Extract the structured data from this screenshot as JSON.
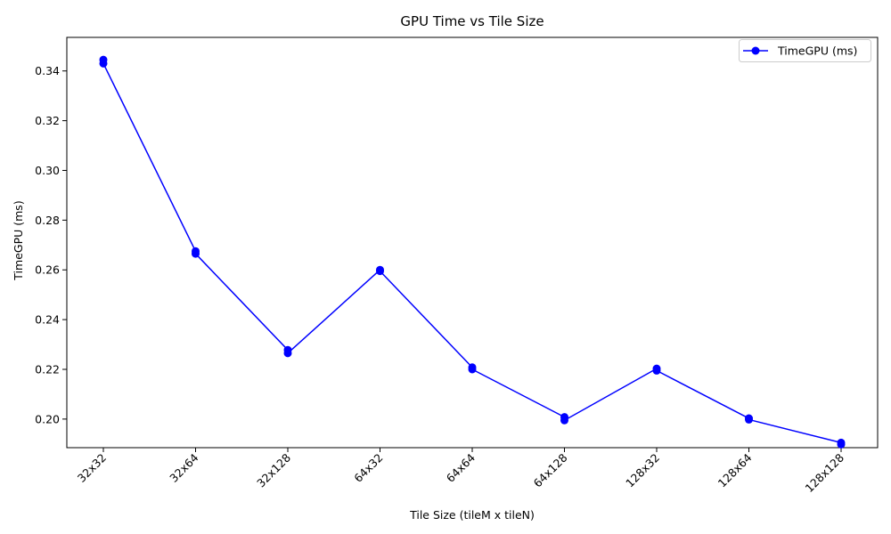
{
  "chart_data": {
    "type": "line",
    "title": "GPU Time vs Tile Size",
    "xlabel": "Tile Size (tileM x tileN)",
    "ylabel": "TimeGPU (ms)",
    "categories": [
      "32x32",
      "32x64",
      "32x128",
      "64x32",
      "64x64",
      "64x128",
      "128x32",
      "128x64",
      "128x128"
    ],
    "yticks": [
      "0.20",
      "0.22",
      "0.24",
      "0.26",
      "0.28",
      "0.30",
      "0.32",
      "0.34"
    ],
    "ylim": [
      0.1885,
      0.3535
    ],
    "grid": false,
    "legend_position": "top-right",
    "series": [
      {
        "name": "TimeGPU (ms)",
        "color": "#0000ff",
        "marker": "circle",
        "points": [
          {
            "category": "32x32",
            "value": 0.3445
          },
          {
            "category": "32x32",
            "value": 0.343
          },
          {
            "category": "32x64",
            "value": 0.2675
          },
          {
            "category": "32x64",
            "value": 0.2665
          },
          {
            "category": "32x128",
            "value": 0.2278
          },
          {
            "category": "32x128",
            "value": 0.2265
          },
          {
            "category": "64x32",
            "value": 0.26
          },
          {
            "category": "64x32",
            "value": 0.2595
          },
          {
            "category": "64x64",
            "value": 0.2208
          },
          {
            "category": "64x64",
            "value": 0.22
          },
          {
            "category": "64x128",
            "value": 0.2008
          },
          {
            "category": "64x128",
            "value": 0.1995
          },
          {
            "category": "128x32",
            "value": 0.2203
          },
          {
            "category": "128x32",
            "value": 0.2195
          },
          {
            "category": "128x64",
            "value": 0.2003
          },
          {
            "category": "128x64",
            "value": 0.1998
          },
          {
            "category": "128x128",
            "value": 0.1905
          },
          {
            "category": "128x128",
            "value": 0.1898
          }
        ]
      }
    ]
  }
}
